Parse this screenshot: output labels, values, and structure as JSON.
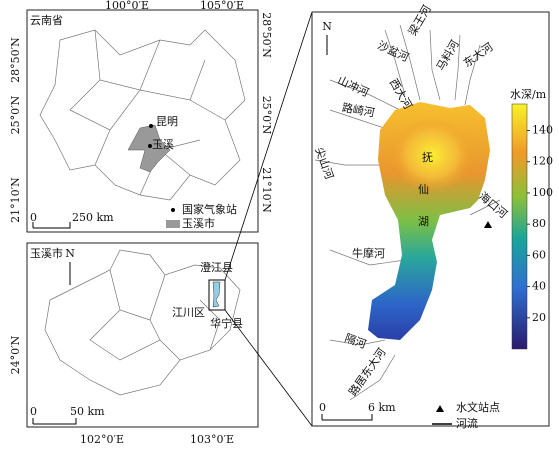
{
  "panel_a": {
    "title": "云南省",
    "top_ticks": [
      "100°0′E",
      "105°0′E"
    ],
    "left_ticks": [
      "28°50′N",
      "25°0′N",
      "21°10′N"
    ],
    "right_ticks": [
      "28°50′N",
      "25°0′N",
      "21°10′N"
    ],
    "labels": [
      "昆明",
      "玉溪"
    ],
    "scale": [
      "0",
      "250 km"
    ],
    "legend": [
      "国家气象站",
      "玉溪市"
    ]
  },
  "panel_b": {
    "title": "玉溪市",
    "north": "N",
    "bottom_ticks": [
      "102°0′E",
      "103°0′E"
    ],
    "left_ticks": [
      "24°0′N"
    ],
    "labels": [
      "澄江县",
      "江川区",
      "华宁县"
    ],
    "scale": [
      "0",
      "50 km"
    ]
  },
  "panel_c": {
    "north": "N",
    "colorbar_title": "水深/m",
    "colorbar_range": [
      0,
      157
    ],
    "colorbar_ticks": [
      20,
      40,
      60,
      80,
      100,
      120,
      140
    ],
    "lake_name": [
      "抚",
      "仙",
      "湖"
    ],
    "rivers": [
      "沙盆河",
      "梁王河",
      "马料河",
      "东大河",
      "山冲河",
      "西大河",
      "路崎河",
      "尖山河",
      "海口河",
      "牛摩河",
      "隔河",
      "路居东大河"
    ],
    "scale": [
      "0",
      "6 km"
    ],
    "legend": [
      "水文站点",
      "河流"
    ]
  }
}
